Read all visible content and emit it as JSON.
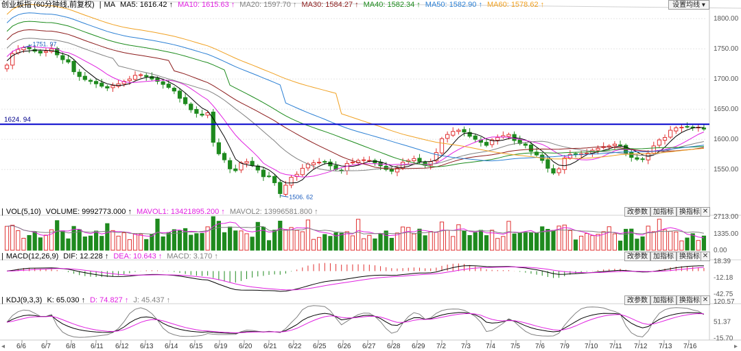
{
  "settings_button": "设置均线",
  "chart_data": [
    {
      "type": "candlestick",
      "title": "创业板指 (60分钟线,前复权)",
      "indicator_label": "MA",
      "ma_values": [
        {
          "name": "MA5",
          "value": "1616.42",
          "color": "#000000"
        },
        {
          "name": "MA10",
          "value": "1615.63",
          "color": "#e020e0"
        },
        {
          "name": "MA20",
          "value": "1597.70",
          "color": "#808080"
        },
        {
          "name": "MA30",
          "value": "1584.27",
          "color": "#8b1a1a"
        },
        {
          "name": "MA40",
          "value": "1582.34",
          "color": "#1a8a1a"
        },
        {
          "name": "MA50",
          "value": "1582.90",
          "color": "#2a7fd4"
        },
        {
          "name": "MA60",
          "value": "1578.62",
          "color": "#f0a020"
        }
      ],
      "y_ticks": [
        "1800.00",
        "1750.00",
        "1700.00",
        "1650.00",
        "1600.00",
        "1550.00"
      ],
      "ylim": [
        1490,
        1815
      ],
      "horizontal_line": {
        "value": 1624.94,
        "label": "1624. 94",
        "color": "#0000cc"
      },
      "annotations": [
        {
          "label": "1751. 97",
          "value": 1751.97
        },
        {
          "label": "1506. 62",
          "value": 1506.62
        }
      ],
      "closes": [
        1723,
        1742,
        1749,
        1752,
        1750,
        1746,
        1743,
        1746,
        1750,
        1740,
        1732,
        1728,
        1712,
        1704,
        1699,
        1696,
        1692,
        1688,
        1685,
        1689,
        1692,
        1696,
        1700,
        1706,
        1707,
        1704,
        1700,
        1696,
        1691,
        1686,
        1680,
        1668,
        1659,
        1649,
        1643,
        1640,
        1644,
        1595,
        1576,
        1566,
        1551,
        1548,
        1561,
        1563,
        1557,
        1549,
        1538,
        1539,
        1528,
        1510,
        1524,
        1537,
        1542,
        1552,
        1559,
        1561,
        1562,
        1563,
        1556,
        1550,
        1548,
        1560,
        1562,
        1565,
        1566,
        1565,
        1561,
        1556,
        1550,
        1547,
        1552,
        1562,
        1565,
        1568,
        1563,
        1557,
        1563,
        1578,
        1601,
        1608,
        1613,
        1615,
        1612,
        1605,
        1600,
        1595,
        1590,
        1599,
        1603,
        1606,
        1608,
        1598,
        1593,
        1590,
        1580,
        1574,
        1565,
        1552,
        1544,
        1551,
        1569,
        1575,
        1575,
        1576,
        1577,
        1582,
        1585,
        1588,
        1589,
        1592,
        1590,
        1577,
        1570,
        1567,
        1567,
        1577,
        1589,
        1599,
        1603,
        1615,
        1619,
        1620,
        1621,
        1619,
        1620,
        1617
      ],
      "closes_note": "",
      "volume_panel": {
        "title": "VOL(5,10)",
        "values": [
          {
            "name": "VOLUME",
            "value": "9992773.000",
            "color": "#000000"
          },
          {
            "name": "MAVOL1",
            "value": "13421895.200",
            "color": "#e020e0"
          },
          {
            "name": "MAVOL2",
            "value": "13996581.800",
            "color": "#808080"
          }
        ],
        "y_ticks": [
          "2713.00",
          "1335.00",
          "0.00"
        ]
      },
      "macd_panel": {
        "title": "MACD(12,26,9)",
        "values": [
          {
            "name": "DIF",
            "value": "12.228",
            "color": "#000000"
          },
          {
            "name": "DEA",
            "value": "10.643",
            "color": "#e020e0"
          },
          {
            "name": "MACD",
            "value": "3.170",
            "color": "#808080"
          }
        ],
        "y_ticks": [
          "18.39",
          "-12.18",
          "-42.75"
        ]
      },
      "kdj_panel": {
        "title": "KDJ(9,3,3)",
        "values": [
          {
            "name": "K",
            "value": "65.030",
            "color": "#000000"
          },
          {
            "name": "D",
            "value": "74.827",
            "color": "#e020e0"
          },
          {
            "name": "J",
            "value": "45.437",
            "color": "#808080"
          }
        ],
        "y_ticks": [
          "51.37",
          "-15.70"
        ],
        "top_tick_partial": "120.57"
      },
      "x_labels": [
        "6/6",
        "6/7",
        "6/8",
        "6/11",
        "6/12",
        "6/13",
        "6/14",
        "6/15",
        "6/19",
        "6/20",
        "6/21",
        "6/22",
        "6/25",
        "6/26",
        "6/27",
        "6/28",
        "6/29",
        "7/2",
        "7/3",
        "7/4",
        "7/5",
        "7/6",
        "7/9",
        "7/10",
        "7/11",
        "7/12",
        "7/13",
        "7/16"
      ],
      "panel_buttons": [
        "改参数",
        "加指标",
        "换指标"
      ]
    }
  ]
}
